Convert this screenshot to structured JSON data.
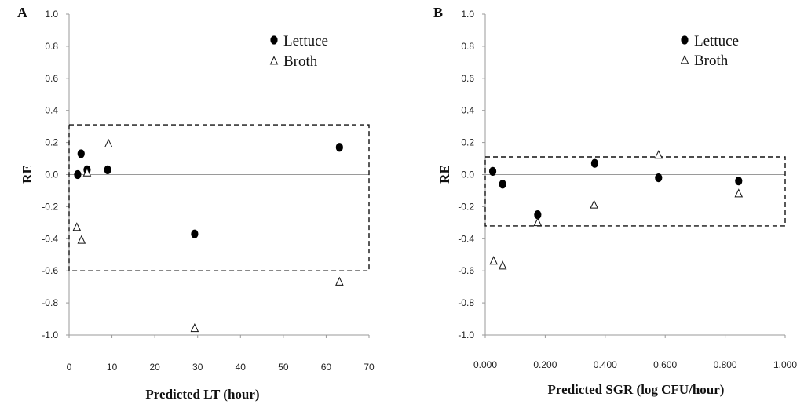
{
  "chart_data": [
    {
      "type": "scatter",
      "panel_label": "A",
      "xlabel": "Predicted LT (hour)",
      "ylabel": "RE",
      "xlim": [
        0,
        70
      ],
      "ylim": [
        -1.0,
        1.0
      ],
      "xticks": [
        "0",
        "10",
        "20",
        "30",
        "40",
        "50",
        "60",
        "70"
      ],
      "xtick_values": [
        0,
        10,
        20,
        30,
        40,
        50,
        60,
        70
      ],
      "yticks": [
        "1.0",
        "0.8",
        "0.6",
        "0.4",
        "0.2",
        "0.0",
        "-0.2",
        "-0.4",
        "-0.6",
        "-0.8",
        "-1.0"
      ],
      "ytick_values": [
        1.0,
        0.8,
        0.6,
        0.4,
        0.2,
        0.0,
        -0.2,
        -0.4,
        -0.6,
        -0.8,
        -1.0
      ],
      "bounds_box": {
        "x_range": [
          0,
          70
        ],
        "y_range": [
          -0.6,
          0.31
        ]
      },
      "legend_position": "top-right",
      "series": [
        {
          "name": "Lettuce",
          "marker": "filled-circle",
          "points": [
            [
              2.0,
              0.0
            ],
            [
              2.8,
              0.13
            ],
            [
              4.2,
              0.03
            ],
            [
              9.0,
              0.03
            ],
            [
              29.3,
              -0.37
            ],
            [
              63.1,
              0.17
            ]
          ]
        },
        {
          "name": "Broth",
          "marker": "open-triangle",
          "points": [
            [
              1.8,
              -0.33
            ],
            [
              2.9,
              -0.41
            ],
            [
              4.2,
              0.01
            ],
            [
              9.2,
              0.19
            ],
            [
              29.3,
              -0.96
            ],
            [
              63.1,
              -0.67
            ]
          ]
        }
      ]
    },
    {
      "type": "scatter",
      "panel_label": "B",
      "xlabel": "Predicted SGR (log CFU/hour)",
      "ylabel": "RE",
      "xlim": [
        0,
        1.0
      ],
      "ylim": [
        -1.0,
        1.0
      ],
      "xticks": [
        "0.000",
        "0.200",
        "0.400",
        "0.600",
        "0.800",
        "1.000"
      ],
      "xtick_values": [
        0,
        0.2,
        0.4,
        0.6,
        0.8,
        1.0
      ],
      "yticks": [
        "1.0",
        "0.8",
        "0.6",
        "0.4",
        "0.2",
        "0.0",
        "-0.2",
        "-0.4",
        "-0.6",
        "-0.8",
        "-1.0"
      ],
      "ytick_values": [
        1.0,
        0.8,
        0.6,
        0.4,
        0.2,
        0.0,
        -0.2,
        -0.4,
        -0.6,
        -0.8,
        -1.0
      ],
      "bounds_box": {
        "x_range": [
          0,
          1.0
        ],
        "y_range": [
          -0.32,
          0.11
        ]
      },
      "legend_position": "top-right",
      "series": [
        {
          "name": "Lettuce",
          "marker": "filled-circle",
          "points": [
            [
              0.025,
              0.02
            ],
            [
              0.058,
              -0.06
            ],
            [
              0.175,
              -0.25
            ],
            [
              0.365,
              0.07
            ],
            [
              0.578,
              -0.02
            ],
            [
              0.845,
              -0.04
            ]
          ]
        },
        {
          "name": "Broth",
          "marker": "open-triangle",
          "points": [
            [
              0.028,
              -0.54
            ],
            [
              0.058,
              -0.57
            ],
            [
              0.175,
              -0.3
            ],
            [
              0.363,
              -0.19
            ],
            [
              0.578,
              0.12
            ],
            [
              0.845,
              -0.12
            ]
          ]
        }
      ]
    }
  ]
}
